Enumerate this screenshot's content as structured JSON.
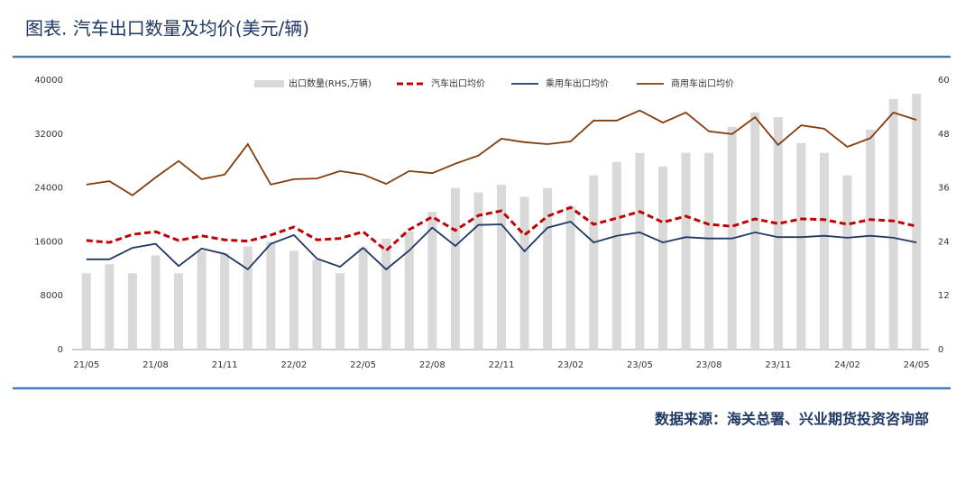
{
  "chart_data": {
    "type": "combo",
    "title": "图表. 汽车出口数量及均价(美元/辆)",
    "source": "数据来源：海关总署、兴业期货投资咨询部",
    "categories": [
      "21/05",
      null,
      null,
      "21/08",
      null,
      null,
      "21/11",
      null,
      null,
      "22/02",
      null,
      null,
      "22/05",
      null,
      null,
      "22/08",
      null,
      null,
      "22/11",
      null,
      null,
      "23/02",
      null,
      null,
      "23/05",
      null,
      null,
      "23/08",
      null,
      null,
      "23/11",
      null,
      null,
      "24/02",
      null,
      null,
      "24/05"
    ],
    "ylim": [
      0,
      40000
    ],
    "yticks": [
      0,
      8000,
      16000,
      24000,
      32000,
      40000
    ],
    "y2lim": [
      0,
      60
    ],
    "y2ticks": [
      0,
      12,
      24,
      36,
      48,
      60
    ],
    "grid": false,
    "legend": "top",
    "series": [
      {
        "name": "出口数量(RHS,万辆)",
        "type": "bar",
        "axis": "y2",
        "color": "#d9d9d9",
        "values": [
          17,
          19,
          17,
          21,
          17,
          22,
          21.5,
          23,
          24,
          22,
          20,
          17,
          22.7,
          24.7,
          26.3,
          30.7,
          36,
          35,
          36.7,
          34,
          36,
          32,
          38.8,
          41.8,
          43.8,
          40.8,
          43.8,
          43.8,
          49.6,
          52.8,
          51.8,
          46,
          43.8,
          38.8,
          49,
          55.8,
          57
        ]
      },
      {
        "name": "汽车出口均价",
        "type": "line",
        "line_style": "dashed",
        "color": "#c00000",
        "values": [
          16200,
          15900,
          17100,
          17500,
          16200,
          16900,
          16300,
          16100,
          17000,
          18200,
          16300,
          16500,
          17500,
          14700,
          17800,
          19700,
          17700,
          19900,
          20600,
          17000,
          19800,
          21100,
          18600,
          19500,
          20500,
          18900,
          19800,
          18600,
          18300,
          19400,
          18700,
          19400,
          19300,
          18600,
          19300,
          19100,
          18300
        ]
      },
      {
        "name": "乘用车出口均价",
        "type": "line",
        "line_style": "solid",
        "color": "#1f3864",
        "values": [
          13400,
          13400,
          15100,
          15700,
          12400,
          15000,
          14200,
          11900,
          15700,
          17000,
          13500,
          12300,
          15100,
          11900,
          14700,
          18100,
          15400,
          18500,
          18600,
          14600,
          18100,
          19000,
          15900,
          16900,
          17400,
          15900,
          16700,
          16500,
          16500,
          17400,
          16700,
          16700,
          16900,
          16600,
          16900,
          16600,
          15900
        ]
      },
      {
        "name": "商用车出口均价",
        "type": "line",
        "line_style": "solid",
        "color": "#843c0c",
        "values": [
          24500,
          25000,
          22900,
          25550,
          28000,
          25300,
          26000,
          30500,
          24500,
          25300,
          25400,
          26500,
          26000,
          24600,
          26500,
          26200,
          27600,
          28800,
          31300,
          30800,
          30500,
          30900,
          34000,
          34000,
          35500,
          33700,
          35200,
          32400,
          32000,
          34500,
          30400,
          33300,
          32800,
          30100,
          31400,
          35200,
          34100
        ]
      }
    ]
  }
}
